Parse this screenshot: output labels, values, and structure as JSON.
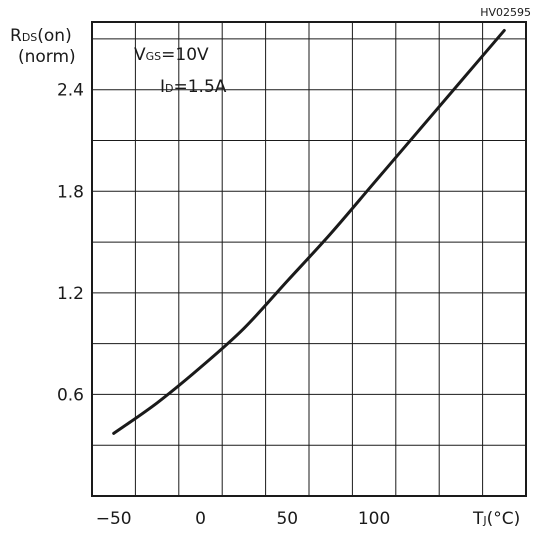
{
  "chart_data": {
    "type": "line",
    "code": "HV02595",
    "ylabel": {
      "main": "R",
      "sub": "DS",
      "rest": "(on)",
      "line2": "(norm)"
    },
    "xlabel": {
      "main": "T",
      "sub": "J",
      "rest": "(°C)"
    },
    "annotations": [
      {
        "main": "V",
        "sub": "GS",
        "rest": "=10V"
      },
      {
        "main": "I",
        "sub": "D",
        "rest": "=1.5A"
      }
    ],
    "xlim": [
      -62.5,
      187.5
    ],
    "ylim": [
      0,
      2.8
    ],
    "x_ticks": [
      -50,
      0,
      50,
      100
    ],
    "x_tick_labels": [
      "−50",
      "0",
      "50",
      "100"
    ],
    "y_ticks": [
      0.6,
      1.2,
      1.8,
      2.4
    ],
    "y_tick_labels": [
      "0.6",
      "1.2",
      "1.8",
      "2.4"
    ],
    "x_grid_step": 25,
    "y_grid_step": 0.3,
    "grid": true,
    "series": [
      {
        "x": [
          -50,
          -25,
          0,
          25,
          50,
          75,
          100,
          125,
          150,
          175
        ],
        "y": [
          0.37,
          0.55,
          0.76,
          0.99,
          1.27,
          1.55,
          1.85,
          2.15,
          2.45,
          2.75
        ]
      }
    ]
  }
}
